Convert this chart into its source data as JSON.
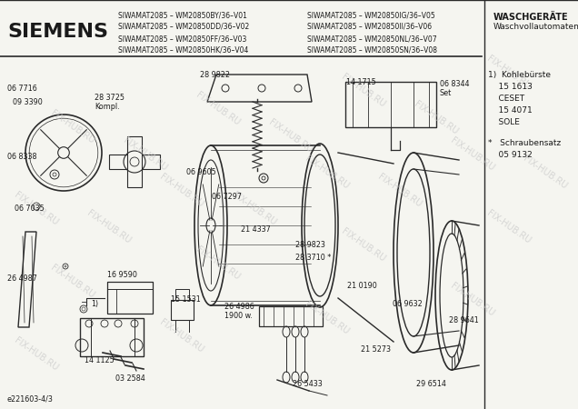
{
  "title": "SIEMENS",
  "header_lines_left": [
    "SIWAMAT2085 – WM20850BY/36–V01",
    "SIWAMAT2085 – WM20850DD/36–V02",
    "SIWAMAT2085 – WM20850FF/36–V03",
    "SIWAMAT2085 – WM20850HK/36–V04"
  ],
  "header_lines_right": [
    "SIWAMAT2085 – WM20850IG/36–V05",
    "SIWAMAT2085 – WM20850II/36–V06",
    "SIWAMAT2085 – WM20850NL/36–V07",
    "SIWAMAT2085 – WM20850SN/36–V08"
  ],
  "header_top_right1": "WASCHGERÄTE",
  "header_top_right2": "Waschvollautomaten",
  "right_panel": [
    "1)  Kohlebürste",
    "    15 1613",
    "    CESET",
    "    15 4071",
    "    SOLE"
  ],
  "right_panel2": [
    "*   Schraubensatz",
    "    05 9132"
  ],
  "bg_color": "#f5f5f0",
  "fg_color": "#1a1a1a",
  "line_color": "#2a2a2a",
  "wm_color": "#c8c8c8"
}
